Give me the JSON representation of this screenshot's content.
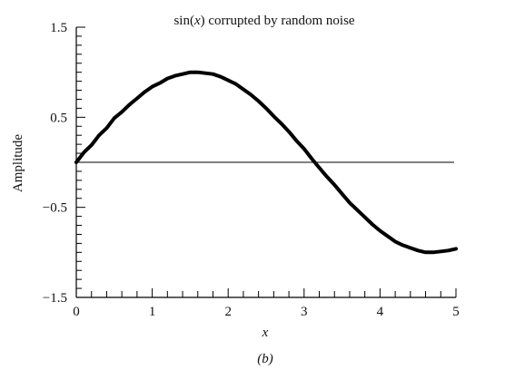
{
  "chart_data": {
    "type": "line",
    "title_prefix": "sin(",
    "title_var": "x",
    "title_suffix": ") corrupted by random noise",
    "xlabel": "x",
    "ylabel": "Amplitude",
    "caption": "(b)",
    "xlim": [
      0,
      5
    ],
    "ylim": [
      -1.5,
      1.5
    ],
    "x_ticks": [
      0,
      1,
      2,
      3,
      4,
      5
    ],
    "x_tick_labels": [
      "0",
      "1",
      "2",
      "3",
      "4",
      "5"
    ],
    "y_ticks": [
      -1.5,
      -0.5,
      0.5,
      1.5
    ],
    "y_tick_labels": [
      "−1.5",
      "−0.5",
      "0.5",
      "1.5"
    ],
    "x_minor_step": 0.2,
    "y_minor_step": 0.1,
    "reference_line_y": 0,
    "grid": false,
    "series": [
      {
        "x": [
          0.0,
          0.1,
          0.2,
          0.3,
          0.4,
          0.5,
          0.6,
          0.7,
          0.8,
          0.9,
          1.0,
          1.1,
          1.2,
          1.3,
          1.4,
          1.5,
          1.6,
          1.7,
          1.8,
          1.9,
          2.0,
          2.1,
          2.2,
          2.3,
          2.4,
          2.5,
          2.6,
          2.7,
          2.8,
          2.9,
          3.0,
          3.1,
          3.2,
          3.3,
          3.4,
          3.5,
          3.6,
          3.7,
          3.8,
          3.9,
          4.0,
          4.1,
          4.2,
          4.3,
          4.4,
          4.5,
          4.6,
          4.7,
          4.8,
          4.9,
          5.0
        ],
        "values": [
          0.0,
          0.11,
          0.19,
          0.3,
          0.38,
          0.49,
          0.56,
          0.64,
          0.71,
          0.78,
          0.84,
          0.88,
          0.93,
          0.96,
          0.98,
          1.0,
          1.0,
          0.99,
          0.98,
          0.95,
          0.91,
          0.87,
          0.81,
          0.75,
          0.68,
          0.6,
          0.51,
          0.43,
          0.34,
          0.24,
          0.15,
          0.04,
          -0.06,
          -0.16,
          -0.25,
          -0.35,
          -0.45,
          -0.53,
          -0.61,
          -0.69,
          -0.76,
          -0.82,
          -0.88,
          -0.92,
          -0.95,
          -0.98,
          -1.0,
          -1.0,
          -0.99,
          -0.98,
          -0.96
        ],
        "color": "#000000"
      }
    ]
  }
}
